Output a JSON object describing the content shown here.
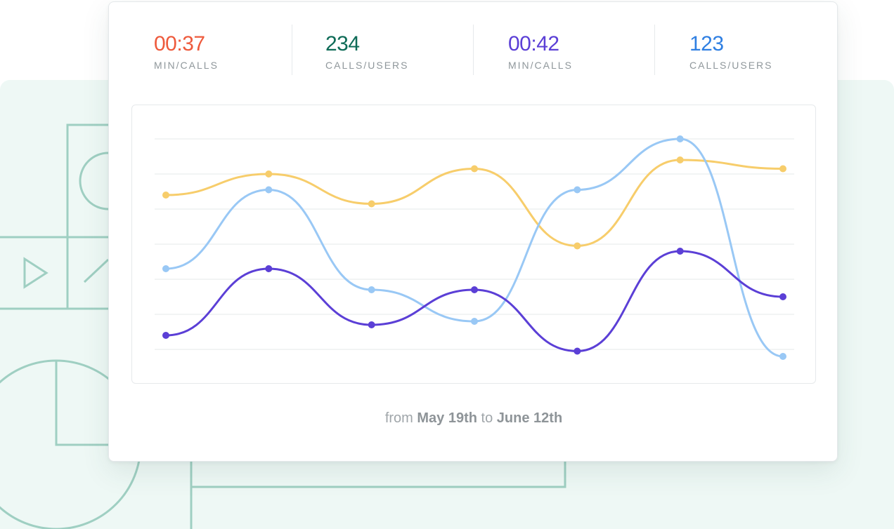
{
  "stats": [
    {
      "value": "00:37",
      "label": "MIN/CALLS",
      "color": "#ee5a3c"
    },
    {
      "value": "234",
      "label": "CALLS/USERS",
      "color": "#0e6b57"
    },
    {
      "value": "00:42",
      "label": "MIN/CALLS",
      "color": "#5b3fd6"
    },
    {
      "value": "123",
      "label": "CALLS/USERS",
      "color": "#2f7fe2"
    }
  ],
  "date_range": {
    "prefix": "from",
    "start": "May 19th",
    "middle": "to",
    "end": "June 12th"
  },
  "chart_data": {
    "type": "line",
    "x": [
      1,
      2,
      3,
      4,
      5,
      6,
      7
    ],
    "ylim": [
      0,
      6
    ],
    "grid": true,
    "smooth": true,
    "markers": true,
    "series": [
      {
        "color": "#f7cd6b",
        "values": [
          4.4,
          5.0,
          4.15,
          5.15,
          2.95,
          5.4,
          5.15
        ]
      },
      {
        "color": "#99c8f5",
        "values": [
          2.3,
          4.55,
          1.7,
          0.8,
          4.55,
          6.0,
          -0.2
        ]
      },
      {
        "color": "#5b3fd6",
        "values": [
          0.4,
          2.3,
          0.7,
          1.7,
          -0.05,
          2.8,
          1.5
        ]
      }
    ]
  }
}
